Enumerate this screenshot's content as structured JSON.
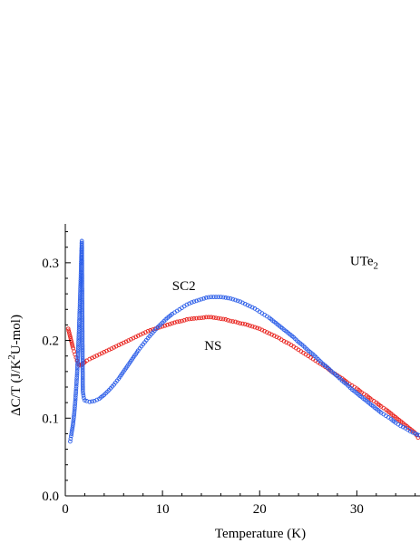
{
  "chart_data": {
    "type": "scatter",
    "xlabel": "Temperature (K)",
    "ylabel": {
      "pre": "ΔC/T (J/K",
      "sup": "2",
      "post": "U-mol)"
    },
    "xlim": [
      0,
      36.5
    ],
    "ylim": [
      0,
      0.35
    ],
    "xticks": [
      0,
      10,
      20,
      30
    ],
    "yticks": [
      0.0,
      0.1,
      0.2,
      0.3
    ],
    "ytick_labels": [
      "0.0",
      "0.1",
      "0.2",
      "0.3"
    ],
    "grid": false,
    "annotations": [
      {
        "id": "sc2",
        "text": "SC2",
        "x": 11,
        "y": 0.265
      },
      {
        "id": "ns",
        "text": "NS",
        "x": 14.3,
        "y": 0.188
      },
      {
        "id": "ute2",
        "text": "UTe",
        "sub": "2",
        "x": 29.3,
        "y": 0.297
      }
    ],
    "series": [
      {
        "id": "ns-series",
        "color": "#e8231e",
        "marker": "open-circle",
        "points": [
          [
            0.3,
            0.215
          ],
          [
            0.4,
            0.21
          ],
          [
            0.5,
            0.205
          ],
          [
            0.6,
            0.2
          ],
          [
            0.7,
            0.195
          ],
          [
            0.8,
            0.19
          ],
          [
            0.9,
            0.186
          ],
          [
            1.0,
            0.182
          ],
          [
            1.1,
            0.178
          ],
          [
            1.2,
            0.174
          ],
          [
            1.3,
            0.171
          ],
          [
            1.4,
            0.169
          ],
          [
            1.5,
            0.168
          ],
          [
            1.6,
            0.168
          ],
          [
            1.7,
            0.169
          ],
          [
            1.8,
            0.17
          ],
          [
            1.9,
            0.171
          ],
          [
            2.0,
            0.172
          ],
          [
            2.2,
            0.174
          ],
          [
            2.5,
            0.176
          ],
          [
            3,
            0.179
          ],
          [
            3.5,
            0.182
          ],
          [
            4,
            0.185
          ],
          [
            4.5,
            0.188
          ],
          [
            5,
            0.191
          ],
          [
            5.5,
            0.194
          ],
          [
            6,
            0.197
          ],
          [
            6.5,
            0.2
          ],
          [
            7,
            0.203
          ],
          [
            7.5,
            0.206
          ],
          [
            8,
            0.209
          ],
          [
            8.5,
            0.212
          ],
          [
            9,
            0.214
          ],
          [
            9.5,
            0.216
          ],
          [
            10,
            0.218
          ],
          [
            10.5,
            0.22
          ],
          [
            11,
            0.222
          ],
          [
            11.5,
            0.224
          ],
          [
            12,
            0.225
          ],
          [
            12.5,
            0.227
          ],
          [
            13,
            0.228
          ],
          [
            14,
            0.229
          ],
          [
            14.5,
            0.23
          ],
          [
            15,
            0.23
          ],
          [
            15.5,
            0.229
          ],
          [
            16,
            0.228
          ],
          [
            16.5,
            0.227
          ],
          [
            17,
            0.225
          ],
          [
            17.5,
            0.224
          ],
          [
            18,
            0.222
          ],
          [
            18.5,
            0.221
          ],
          [
            19,
            0.219
          ],
          [
            19.5,
            0.217
          ],
          [
            20,
            0.215
          ],
          [
            20.5,
            0.212
          ],
          [
            21,
            0.209
          ],
          [
            21.5,
            0.206
          ],
          [
            22,
            0.203
          ],
          [
            22.5,
            0.199
          ],
          [
            23,
            0.196
          ],
          [
            23.5,
            0.192
          ],
          [
            24,
            0.188
          ],
          [
            24.5,
            0.184
          ],
          [
            25,
            0.18
          ],
          [
            25.5,
            0.176
          ],
          [
            26,
            0.172
          ],
          [
            26.5,
            0.168
          ],
          [
            27,
            0.164
          ],
          [
            27.5,
            0.159
          ],
          [
            28,
            0.155
          ],
          [
            28.5,
            0.151
          ],
          [
            29,
            0.146
          ],
          [
            29.5,
            0.142
          ],
          [
            30,
            0.138
          ],
          [
            30.5,
            0.133
          ],
          [
            31,
            0.129
          ],
          [
            31.5,
            0.124
          ],
          [
            32,
            0.12
          ],
          [
            32.5,
            0.115
          ],
          [
            33,
            0.111
          ],
          [
            33.5,
            0.106
          ],
          [
            34,
            0.101
          ],
          [
            34.5,
            0.096
          ],
          [
            35,
            0.091
          ],
          [
            35.5,
            0.086
          ],
          [
            36,
            0.081
          ],
          [
            36.3,
            0.075
          ]
        ]
      },
      {
        "id": "sc2-series",
        "color": "#2c5ee8",
        "marker": "open-circle",
        "points": [
          [
            0.5,
            0.07
          ],
          [
            0.6,
            0.077
          ],
          [
            0.7,
            0.085
          ],
          [
            0.8,
            0.093
          ],
          [
            0.9,
            0.104
          ],
          [
            1.0,
            0.118
          ],
          [
            1.1,
            0.135
          ],
          [
            1.2,
            0.155
          ],
          [
            1.3,
            0.18
          ],
          [
            1.4,
            0.21
          ],
          [
            1.5,
            0.245
          ],
          [
            1.6,
            0.285
          ],
          [
            1.65,
            0.31
          ],
          [
            1.7,
            0.328
          ],
          [
            1.8,
            0.135
          ],
          [
            1.9,
            0.126
          ],
          [
            2.0,
            0.123
          ],
          [
            2.2,
            0.122
          ],
          [
            2.5,
            0.121
          ],
          [
            3,
            0.122
          ],
          [
            3.5,
            0.125
          ],
          [
            4,
            0.13
          ],
          [
            4.5,
            0.136
          ],
          [
            5,
            0.143
          ],
          [
            5.5,
            0.151
          ],
          [
            6,
            0.16
          ],
          [
            6.5,
            0.169
          ],
          [
            7,
            0.178
          ],
          [
            7.5,
            0.187
          ],
          [
            8,
            0.195
          ],
          [
            8.5,
            0.203
          ],
          [
            9,
            0.21
          ],
          [
            9.5,
            0.217
          ],
          [
            10,
            0.223
          ],
          [
            10.5,
            0.229
          ],
          [
            11,
            0.234
          ],
          [
            11.5,
            0.238
          ],
          [
            12,
            0.242
          ],
          [
            12.5,
            0.246
          ],
          [
            13,
            0.249
          ],
          [
            13.5,
            0.251
          ],
          [
            14,
            0.253
          ],
          [
            14.5,
            0.255
          ],
          [
            15,
            0.256
          ],
          [
            15.5,
            0.256
          ],
          [
            16,
            0.256
          ],
          [
            16.5,
            0.255
          ],
          [
            17,
            0.254
          ],
          [
            17.5,
            0.252
          ],
          [
            18,
            0.25
          ],
          [
            18.5,
            0.247
          ],
          [
            19,
            0.244
          ],
          [
            19.5,
            0.241
          ],
          [
            20,
            0.237
          ],
          [
            20.5,
            0.233
          ],
          [
            21,
            0.229
          ],
          [
            21.5,
            0.224
          ],
          [
            22,
            0.219
          ],
          [
            22.5,
            0.214
          ],
          [
            23,
            0.209
          ],
          [
            23.5,
            0.204
          ],
          [
            24,
            0.198
          ],
          [
            24.5,
            0.193
          ],
          [
            25,
            0.187
          ],
          [
            25.5,
            0.182
          ],
          [
            26,
            0.176
          ],
          [
            26.5,
            0.17
          ],
          [
            27,
            0.165
          ],
          [
            27.5,
            0.159
          ],
          [
            28,
            0.154
          ],
          [
            28.5,
            0.148
          ],
          [
            29,
            0.143
          ],
          [
            29.5,
            0.137
          ],
          [
            30,
            0.132
          ],
          [
            30.5,
            0.127
          ],
          [
            31,
            0.122
          ],
          [
            31.5,
            0.117
          ],
          [
            32,
            0.112
          ],
          [
            32.5,
            0.107
          ],
          [
            33,
            0.103
          ],
          [
            33.5,
            0.099
          ],
          [
            34,
            0.094
          ],
          [
            34.5,
            0.09
          ],
          [
            35,
            0.087
          ],
          [
            35.5,
            0.083
          ],
          [
            36,
            0.08
          ],
          [
            36.4,
            0.078
          ]
        ]
      }
    ]
  }
}
